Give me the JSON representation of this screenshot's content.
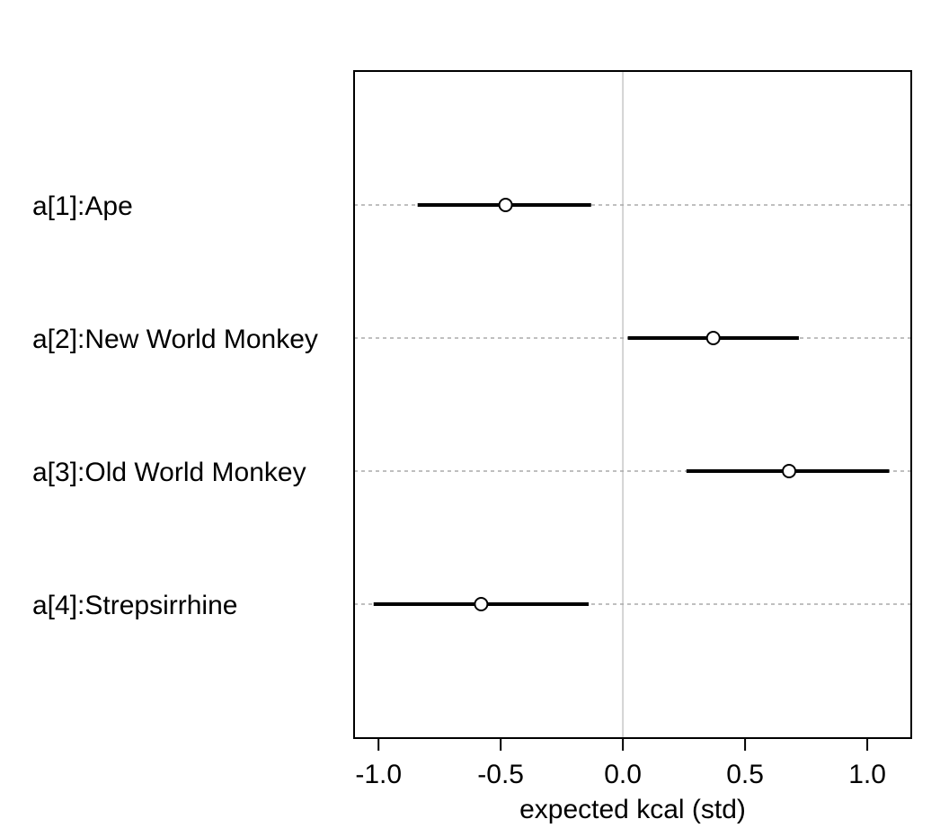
{
  "chart_data": {
    "type": "forest",
    "title": "",
    "xlabel": "expected kcal (std)",
    "ylabel": "",
    "xlim": [
      -1.1,
      1.18
    ],
    "xticks": [
      -1.0,
      -0.5,
      0.0,
      0.5,
      1.0
    ],
    "xtick_labels": [
      "-1.0",
      "-0.5",
      "0.0",
      "0.5",
      "1.0"
    ],
    "reference_line": 0.0,
    "grid": "dotted row guides",
    "rows": [
      {
        "label": "a[1]:Ape",
        "mean": -0.48,
        "lower": -0.84,
        "upper": -0.13
      },
      {
        "label": "a[2]:New World Monkey",
        "mean": 0.37,
        "lower": 0.02,
        "upper": 0.72
      },
      {
        "label": "a[3]:Old World Monkey",
        "mean": 0.68,
        "lower": 0.26,
        "upper": 1.09
      },
      {
        "label": "a[4]:Strepsirrhine",
        "mean": -0.58,
        "lower": -1.02,
        "upper": -0.14
      }
    ],
    "colors": {
      "line": "#000000",
      "guide": "#aaaaaa",
      "zero_line": "#d3d3d3",
      "frame": "#000000"
    }
  }
}
